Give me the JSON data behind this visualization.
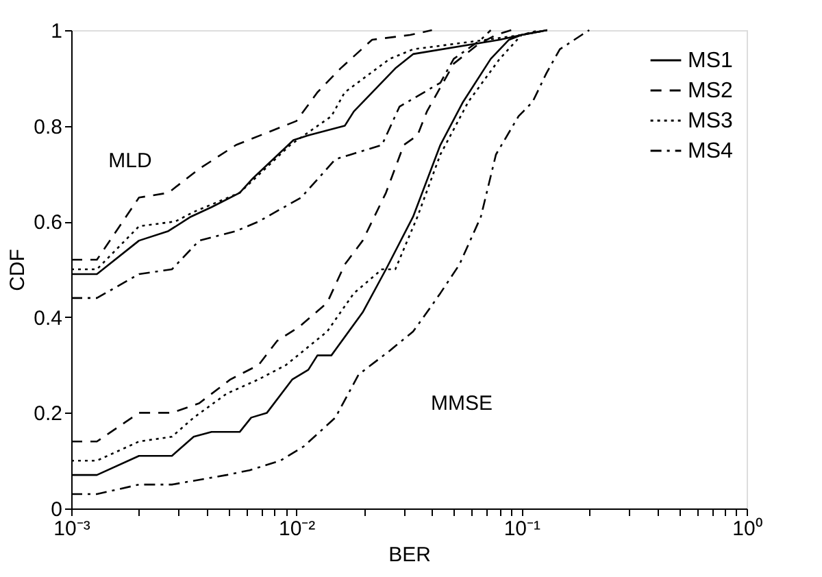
{
  "chart_data": {
    "type": "line",
    "xlabel": "BER",
    "ylabel": "CDF",
    "xlim": [
      0.001,
      1
    ],
    "ylim": [
      0,
      1
    ],
    "log": "x",
    "xticks": [
      {
        "value": 0.001,
        "label": "10⁻³"
      },
      {
        "value": 0.002,
        "label": null
      },
      {
        "value": 0.003,
        "label": null
      },
      {
        "value": 0.004,
        "label": null
      },
      {
        "value": 0.005,
        "label": null
      },
      {
        "value": 0.006,
        "label": null
      },
      {
        "value": 0.007,
        "label": null
      },
      {
        "value": 0.008,
        "label": null
      },
      {
        "value": 0.009,
        "label": null
      },
      {
        "value": 0.01,
        "label": "10⁻²"
      },
      {
        "value": 0.02,
        "label": null
      },
      {
        "value": 0.03,
        "label": null
      },
      {
        "value": 0.04,
        "label": null
      },
      {
        "value": 0.05,
        "label": null
      },
      {
        "value": 0.06,
        "label": null
      },
      {
        "value": 0.07,
        "label": null
      },
      {
        "value": 0.08,
        "label": null
      },
      {
        "value": 0.09,
        "label": null
      },
      {
        "value": 0.1,
        "label": "10⁻¹"
      },
      {
        "value": 0.2,
        "label": null
      },
      {
        "value": 0.3,
        "label": null
      },
      {
        "value": 0.4,
        "label": null
      },
      {
        "value": 0.5,
        "label": null
      },
      {
        "value": 0.6,
        "label": null
      },
      {
        "value": 0.7,
        "label": null
      },
      {
        "value": 0.8,
        "label": null
      },
      {
        "value": 0.9,
        "label": null
      },
      {
        "value": 1,
        "label": "10⁰"
      }
    ],
    "yticks": [
      0,
      {
        "value": 0.2,
        "label": "0.2"
      },
      {
        "value": 0.4,
        "label": "0.4"
      },
      {
        "value": 0.6,
        "label": "0.6"
      },
      {
        "value": 0.8,
        "label": "0.8"
      },
      1
    ],
    "grid": false,
    "legend": "top right",
    "marker": "none",
    "annotations": [
      "MLD",
      "MMSE"
    ],
    "series": [
      {
        "name": "MS1",
        "color": "#000000",
        "line_style": "solid",
        "x": [
          0.001,
          0.0013,
          0.002,
          0.0027,
          0.0034,
          0.0042,
          0.0056,
          0.0064,
          0.0097,
          0.0113,
          0.0164,
          0.018,
          0.0275,
          0.033,
          0.08,
          0.1,
          0.13
        ],
        "values": [
          0.49,
          0.49,
          0.56,
          0.58,
          0.61,
          0.63,
          0.66,
          0.69,
          0.77,
          0.78,
          0.8,
          0.83,
          0.92,
          0.95,
          0.98,
          0.99,
          1
        ]
      },
      {
        "name": "MS2",
        "color": "#000000",
        "line_style": "dashed",
        "x": [
          0.001,
          0.0013,
          0.002,
          0.0027,
          0.0037,
          0.0054,
          0.01,
          0.0124,
          0.0157,
          0.0217,
          0.032,
          0.04
        ],
        "values": [
          0.52,
          0.52,
          0.65,
          0.66,
          0.71,
          0.76,
          0.81,
          0.87,
          0.92,
          0.98,
          0.99,
          1
        ]
      },
      {
        "name": "MS3",
        "color": "#000000",
        "line_style": "dotted",
        "x": [
          0.001,
          0.0013,
          0.002,
          0.0029,
          0.0035,
          0.0056,
          0.0094,
          0.0143,
          0.0164,
          0.026,
          0.033,
          0.07,
          0.1,
          0.13
        ],
        "values": [
          0.5,
          0.5,
          0.59,
          0.6,
          0.62,
          0.66,
          0.76,
          0.82,
          0.87,
          0.94,
          0.96,
          0.98,
          0.99,
          1
        ]
      },
      {
        "name": "MS4",
        "color": "#000000",
        "line_style": "dashdot",
        "x": [
          0.001,
          0.0013,
          0.002,
          0.0028,
          0.0037,
          0.0054,
          0.0068,
          0.0105,
          0.0149,
          0.024,
          0.0287,
          0.0436,
          0.05,
          0.066,
          0.073
        ],
        "values": [
          0.44,
          0.44,
          0.49,
          0.5,
          0.56,
          0.58,
          0.6,
          0.65,
          0.73,
          0.76,
          0.84,
          0.89,
          0.94,
          0.98,
          1
        ]
      },
      {
        "color": "#000000",
        "line_style": "solid",
        "x": [
          0.001,
          0.0013,
          0.002,
          0.0028,
          0.0035,
          0.0042,
          0.0056,
          0.0063,
          0.0074,
          0.0096,
          0.0113,
          0.0124,
          0.0143,
          0.0197,
          0.025,
          0.033,
          0.0436,
          0.055,
          0.073,
          0.088,
          0.1,
          0.13
        ],
        "values": [
          0.07,
          0.07,
          0.11,
          0.11,
          0.15,
          0.16,
          0.16,
          0.19,
          0.2,
          0.27,
          0.29,
          0.32,
          0.32,
          0.41,
          0.5,
          0.61,
          0.76,
          0.85,
          0.94,
          0.98,
          0.99,
          1
        ]
      },
      {
        "color": "#000000",
        "line_style": "dashed",
        "x": [
          0.001,
          0.0013,
          0.002,
          0.0028,
          0.0037,
          0.0051,
          0.0068,
          0.0082,
          0.0103,
          0.0137,
          0.0164,
          0.0197,
          0.025,
          0.03,
          0.0345,
          0.038,
          0.05,
          0.064,
          0.077,
          0.09
        ],
        "values": [
          0.14,
          0.14,
          0.2,
          0.2,
          0.22,
          0.27,
          0.3,
          0.35,
          0.38,
          0.43,
          0.51,
          0.56,
          0.66,
          0.76,
          0.78,
          0.83,
          0.93,
          0.97,
          0.99,
          1
        ]
      },
      {
        "color": "#000000",
        "line_style": "dotted",
        "x": [
          0.001,
          0.0013,
          0.002,
          0.0028,
          0.0035,
          0.0049,
          0.0068,
          0.009,
          0.0137,
          0.018,
          0.024,
          0.0275,
          0.0345,
          0.0436,
          0.058,
          0.08,
          0.1,
          0.12
        ],
        "values": [
          0.1,
          0.1,
          0.14,
          0.15,
          0.19,
          0.24,
          0.27,
          0.3,
          0.37,
          0.45,
          0.5,
          0.5,
          0.61,
          0.74,
          0.85,
          0.94,
          0.99,
          1
        ]
      },
      {
        "color": "#000000",
        "line_style": "dashdot",
        "x": [
          0.001,
          0.0013,
          0.002,
          0.0028,
          0.0049,
          0.0062,
          0.0085,
          0.0108,
          0.0149,
          0.0189,
          0.026,
          0.033,
          0.038,
          0.0436,
          0.053,
          0.066,
          0.077,
          0.097,
          0.112,
          0.129,
          0.148,
          0.185,
          0.2
        ],
        "values": [
          0.03,
          0.03,
          0.05,
          0.05,
          0.07,
          0.08,
          0.1,
          0.13,
          0.19,
          0.28,
          0.33,
          0.37,
          0.41,
          0.45,
          0.51,
          0.61,
          0.74,
          0.82,
          0.85,
          0.91,
          0.96,
          0.99,
          1
        ]
      }
    ]
  }
}
